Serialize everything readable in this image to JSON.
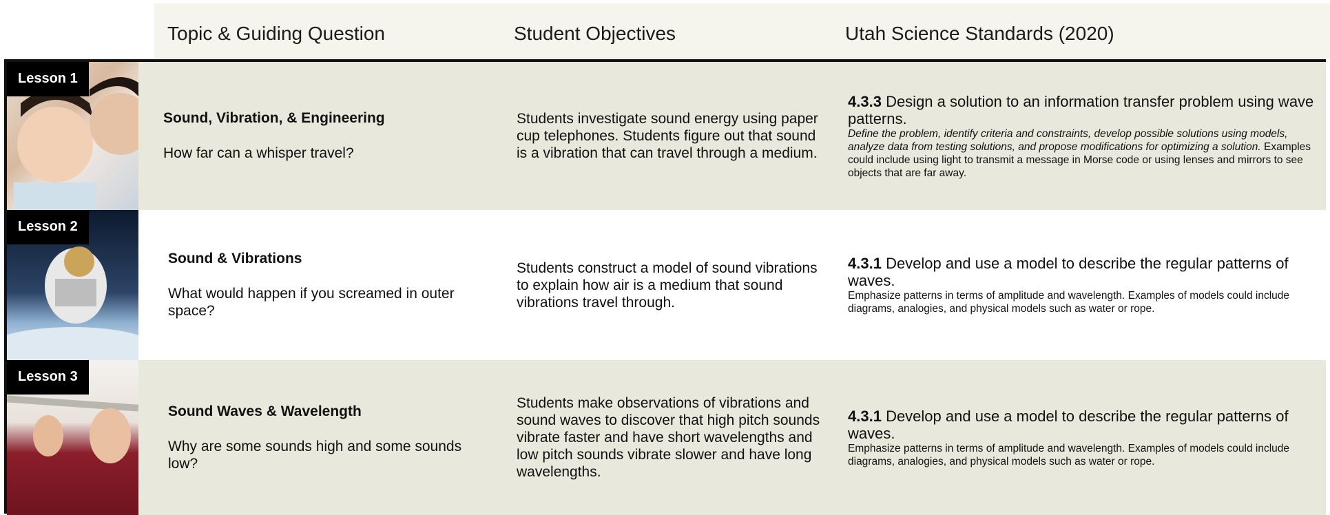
{
  "header": {
    "columns": [
      "Topic & Guiding Question",
      "Student Objectives",
      "Utah Science Standards (2020)"
    ]
  },
  "lessons": [
    {
      "label": "Lesson 1",
      "topic": "Sound, Vibration, & Engineering",
      "question": "How far can a whisper travel?",
      "objective": "Students investigate sound energy using paper cup telephones. Students figure out that sound is a vibration that can travel through a medium.",
      "standard_code": "4.3.3",
      "standard_title": "Design a solution to an information transfer problem using wave patterns.",
      "standard_italic": "Define the problem, identify criteria and constraints, develop possible solutions using models, analyze data from testing solutions, and propose modifications for optimizing a solution.",
      "standard_text": "Examples could include using light to transmit a message in Morse code or using lenses and mirrors to see objects that are far away."
    },
    {
      "label": "Lesson 2",
      "topic": "Sound & Vibrations",
      "question": "What would happen if you screamed in outer space?",
      "objective": "Students construct a model of sound vibrations to explain how air is a medium that sound vibrations travel through.",
      "standard_code": "4.3.1",
      "standard_title": "Develop and use a model to describe the regular patterns of waves.",
      "standard_text": "Emphasize patterns in terms of amplitude and wavelength. Examples of models could include diagrams, analogies, and physical models such as water or rope."
    },
    {
      "label": "Lesson 3",
      "topic": "Sound Waves & Wavelength",
      "question": "Why are some sounds high and some sounds low?",
      "objective": "Students make observations of vibrations and sound waves to discover that high pitch sounds vibrate faster and have short wavelengths and low pitch sounds vibrate slower and have long wavelengths.",
      "standard_code": "4.3.1",
      "standard_title": "Develop and use a model to describe the regular patterns of waves.",
      "standard_text": "Emphasize patterns in terms of amplitude and wavelength. Examples of models could include diagrams, analogies, and physical models such as water or rope."
    }
  ]
}
